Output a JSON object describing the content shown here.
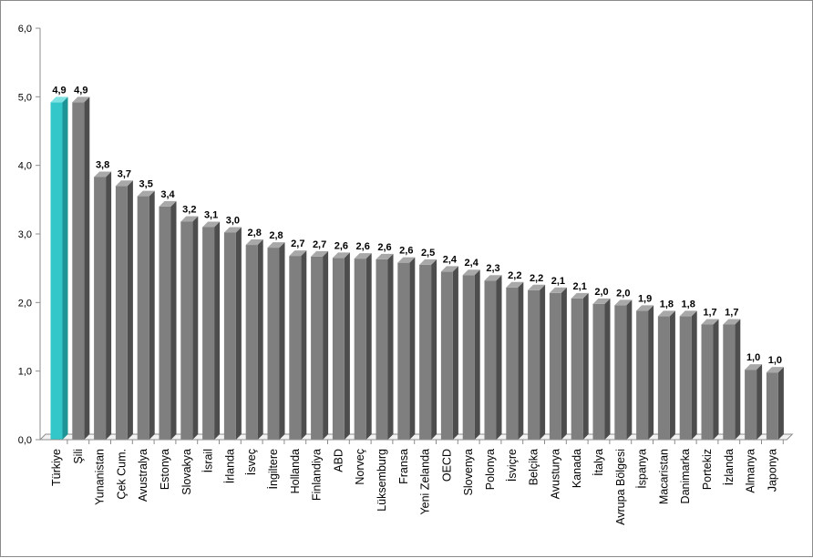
{
  "chart_data": {
    "type": "bar",
    "categories": [
      "Türkiye",
      "Şili",
      "Yunanistan",
      "Çek Cum.",
      "Avustralya",
      "Estonya",
      "Slovakya",
      "İsrail",
      "İrlanda",
      "İsveç",
      "İngiltere",
      "Hollanda",
      "Finlandiya",
      "ABD",
      "Norveç",
      "Lüksemburg",
      "Fransa",
      "Yeni Zelanda",
      "OECD",
      "Slovenya",
      "Polonya",
      "İsviçre",
      "Belçika",
      "Avusturya",
      "Kanada",
      "İtalya",
      "Avrupa Bölgesi",
      "İspanya",
      "Macaristan",
      "Danimarka",
      "Portekiz",
      "İzlanda",
      "Almanya",
      "Japonya"
    ],
    "values": [
      4.92,
      4.92,
      3.83,
      3.7,
      3.55,
      3.4,
      3.18,
      3.1,
      3.02,
      2.84,
      2.8,
      2.68,
      2.67,
      2.65,
      2.64,
      2.63,
      2.58,
      2.55,
      2.45,
      2.4,
      2.32,
      2.22,
      2.18,
      2.14,
      2.06,
      1.98,
      1.96,
      1.88,
      1.8,
      1.8,
      1.68,
      1.68,
      1.02,
      0.98
    ],
    "data_labels": [
      "4,9",
      "4,9",
      "3,8",
      "3,7",
      "3,5",
      "3,4",
      "3,2",
      "3,1",
      "3,0",
      "2,8",
      "2,8",
      "2,7",
      "2,7",
      "2,6",
      "2,6",
      "2,6",
      "2,6",
      "2,5",
      "2,4",
      "2,4",
      "2,3",
      "2,2",
      "2,2",
      "2,1",
      "2,1",
      "2,0",
      "2,0",
      "1,9",
      "1,8",
      "1,8",
      "1,7",
      "1,7",
      "1,0",
      "1,0"
    ],
    "highlight_index": 0,
    "ylim": [
      0,
      6
    ],
    "yticks": [
      "0,0",
      "1,0",
      "2,0",
      "3,0",
      "4,0",
      "5,0",
      "6,0"
    ],
    "grid": false,
    "colors": {
      "highlight": "#33c7c9",
      "highlight_dark": "#1e9496",
      "bar": "#7f7f7f",
      "bar_dark": "#4d4d4d",
      "bar_top": "#a8a8a8",
      "axis": "#8c8c8c"
    }
  }
}
